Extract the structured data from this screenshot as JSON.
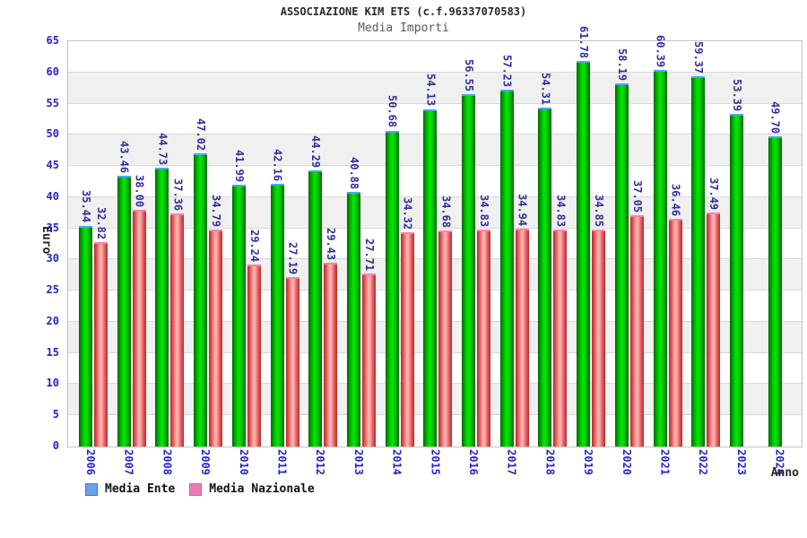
{
  "page": {
    "background": "#ffffff"
  },
  "chart_data": {
    "type": "bar",
    "title": "ASSOCIAZIONE KIM ETS (c.f.96337070583)",
    "subtitle": "Media Importi",
    "ylabel": "Euro",
    "xlabel": "Anno",
    "ylim": [
      0,
      65
    ],
    "ytick_step": 5,
    "grid": "horizontal gridlines with alternating 5-unit bands",
    "legend_position": "bottom-left",
    "value_label_rotation": "vertical",
    "categories": [
      "2006",
      "2007",
      "2008",
      "2009",
      "2010",
      "2011",
      "2012",
      "2013",
      "2014",
      "2015",
      "2016",
      "2017",
      "2018",
      "2019",
      "2020",
      "2021",
      "2022",
      "2023",
      "2024"
    ],
    "series": [
      {
        "name": "Media Ente",
        "values": [
          35.44,
          43.46,
          44.73,
          47.02,
          41.99,
          42.16,
          44.29,
          40.88,
          50.68,
          54.13,
          56.55,
          57.23,
          54.31,
          61.78,
          58.19,
          60.39,
          59.37,
          53.39,
          49.7
        ],
        "bar_edge_color": "#006600",
        "bar_mid_color": "#00b400",
        "bar_center_color": "#00e400",
        "bar_cap_color": "#4fa3f0",
        "legend_fill": "#6ba3e8",
        "legend_border": "#4077c8"
      },
      {
        "name": "Media Nazionale",
        "values": [
          32.82,
          38.0,
          37.36,
          34.79,
          29.24,
          27.19,
          29.43,
          27.71,
          34.32,
          34.68,
          34.83,
          34.94,
          34.83,
          34.85,
          37.05,
          36.46,
          37.49,
          null,
          null
        ],
        "bar_edge_color": "#b82828",
        "bar_mid_color": "#e86868",
        "bar_center_color": "#ffb0b0",
        "bar_cap_color": "#ff7fae",
        "legend_fill": "#f07ab2",
        "legend_border": "#8a8a8a"
      }
    ],
    "colors": {
      "tick_label": "#2323cd",
      "value_label": "#2e2e9e",
      "grid_line": "#d9d9d9",
      "band_alt": "#f0f0f0",
      "band_main": "#ffffff",
      "plot_border": "#c4c4c4",
      "title": "#2a2a2a",
      "subtitle": "#5a5a5a",
      "axis_title": "#222222"
    }
  }
}
